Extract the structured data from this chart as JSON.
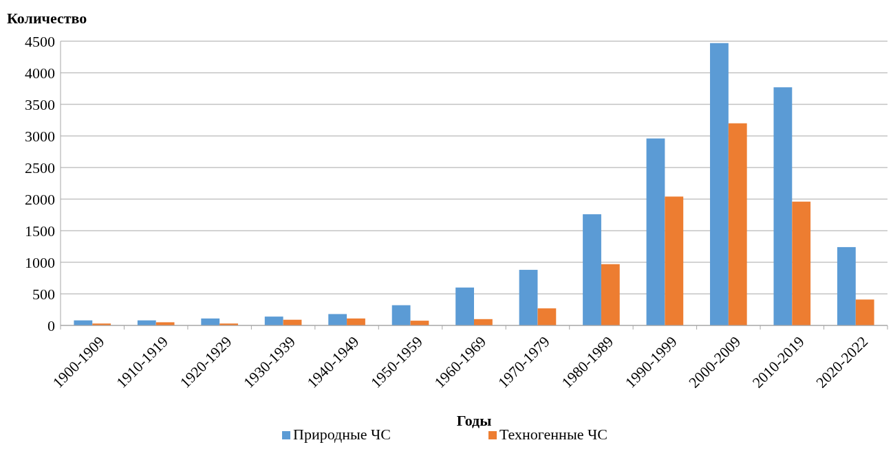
{
  "chart_data": {
    "type": "bar",
    "ylabel": "Количество",
    "xlabel": "Годы",
    "categories": [
      "1900-1909",
      "1910-1919",
      "1920-1929",
      "1930-1939",
      "1940-1949",
      "1950-1959",
      "1960-1969",
      "1970-1979",
      "1980-1989",
      "1990-1999",
      "2000-2009",
      "2010-2019",
      "2020-2022"
    ],
    "series": [
      {
        "name": "Природные ЧС",
        "color": "#5b9bd5",
        "values": [
          80,
          80,
          110,
          140,
          180,
          320,
          600,
          880,
          1760,
          2960,
          4470,
          3770,
          1240
        ]
      },
      {
        "name": "Техногенные ЧС",
        "color": "#ed7d31",
        "values": [
          30,
          50,
          30,
          90,
          110,
          75,
          100,
          270,
          970,
          2040,
          3200,
          1960,
          410
        ]
      }
    ],
    "ylim": [
      0,
      4500
    ],
    "yticks": [
      0,
      500,
      1000,
      1500,
      2000,
      2500,
      3000,
      3500,
      4000,
      4500
    ],
    "grid": "y",
    "legend": "bottom"
  }
}
